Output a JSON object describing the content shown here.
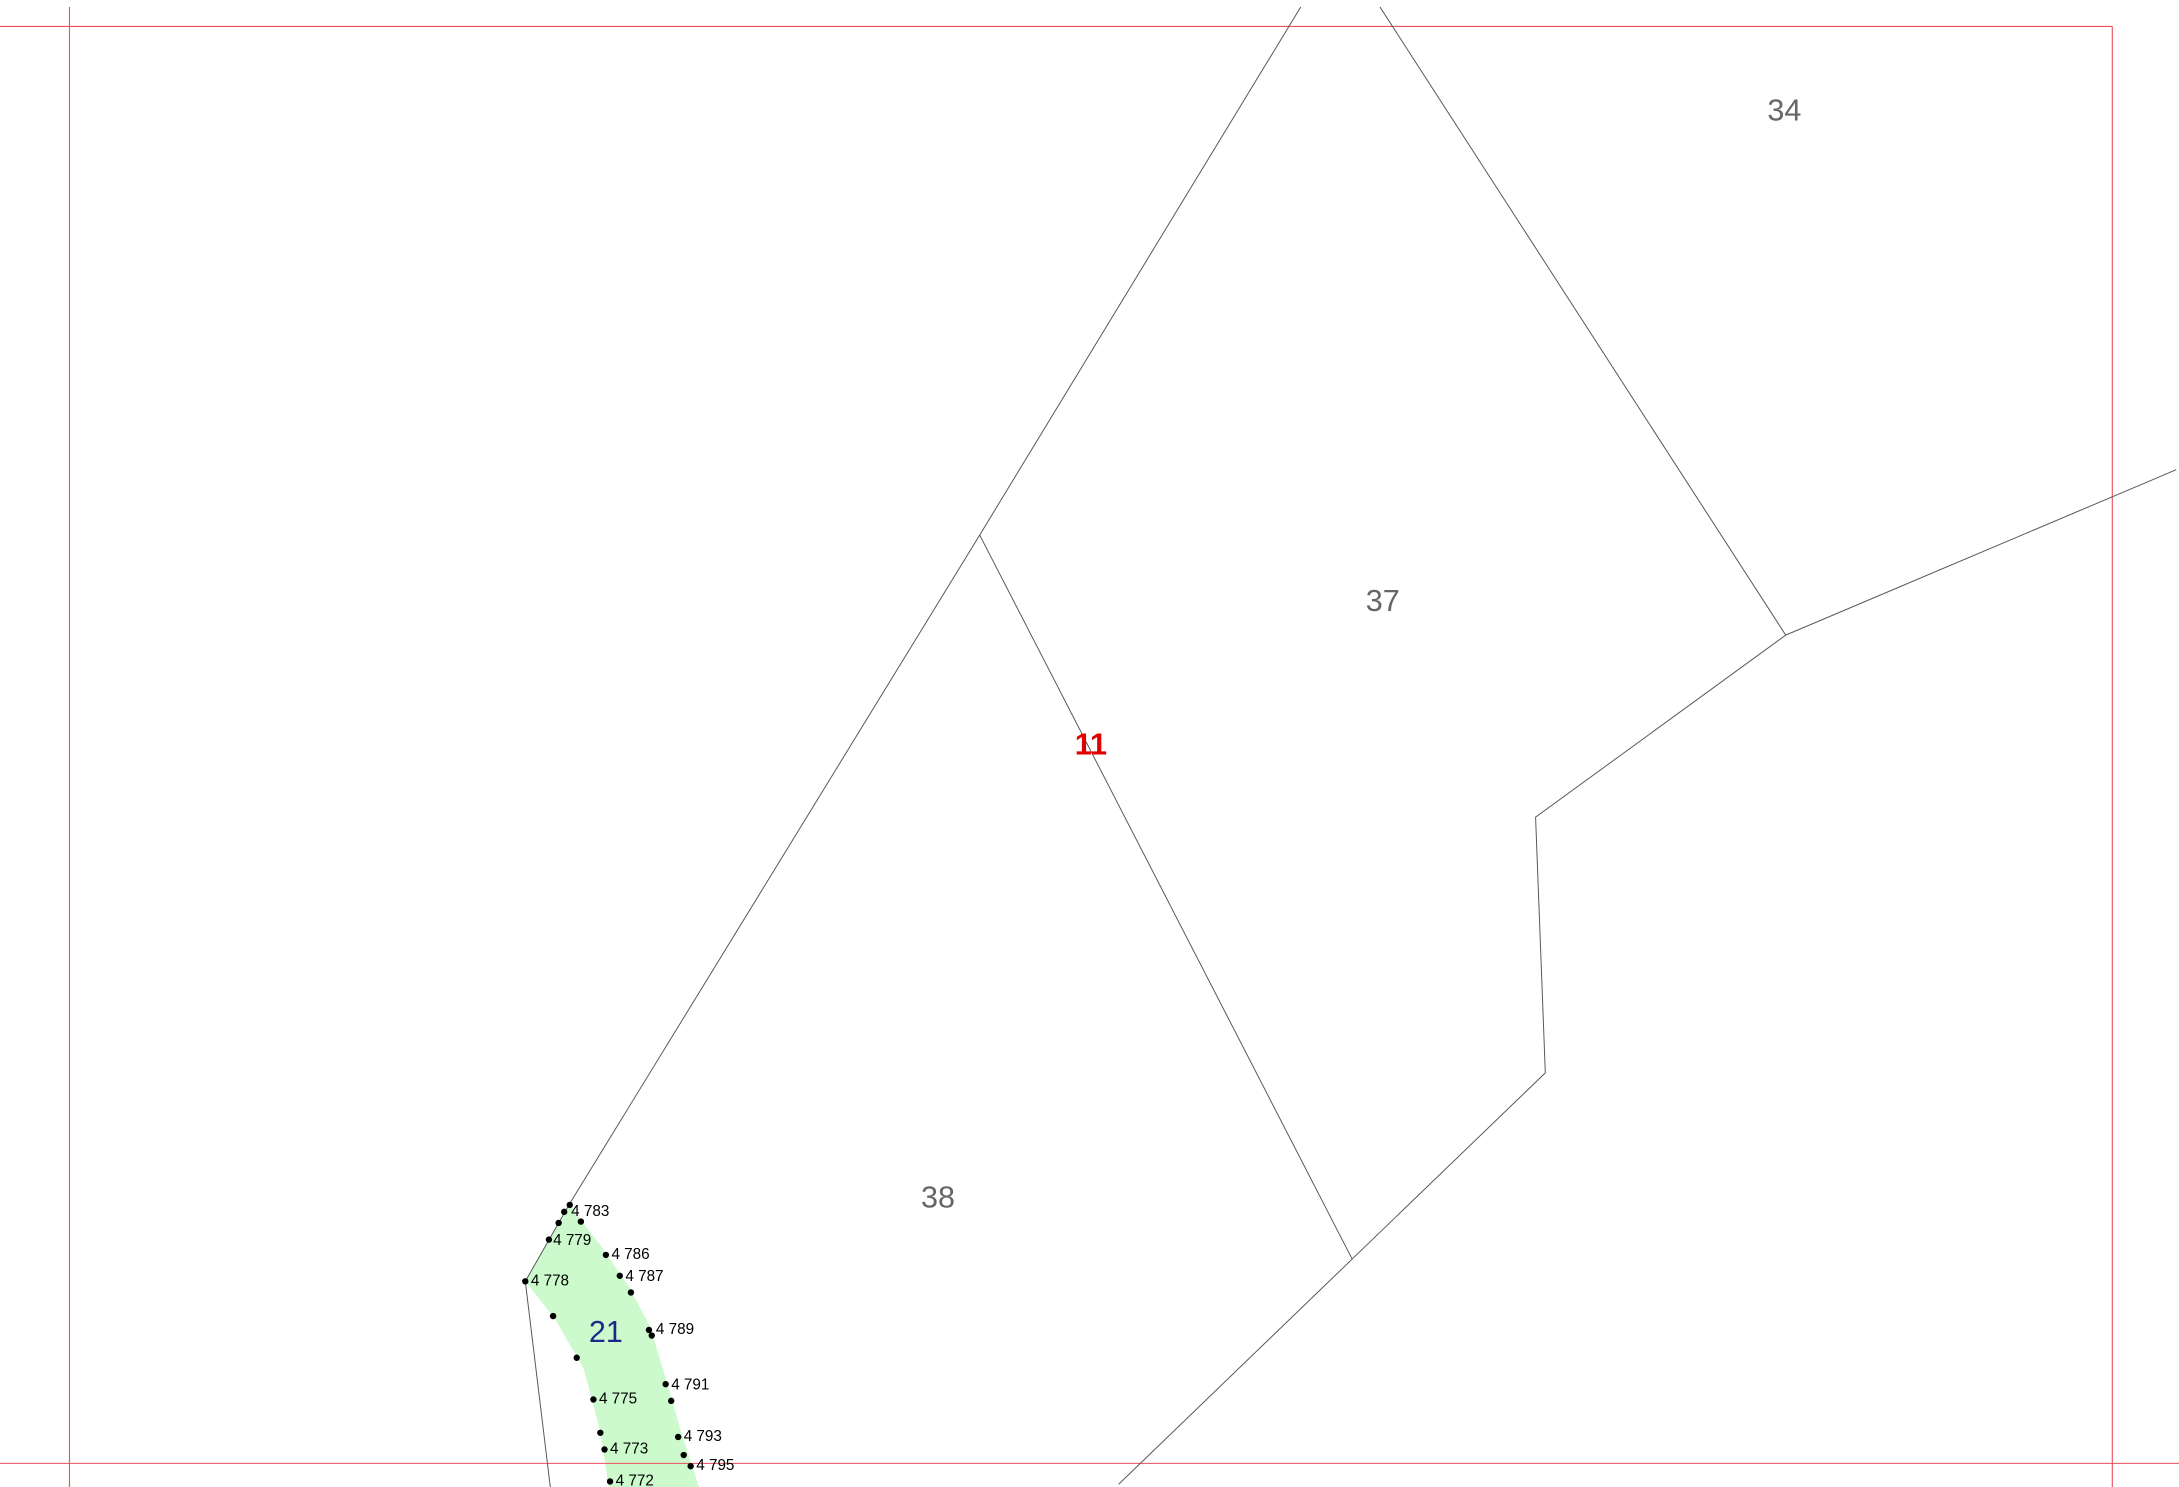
{
  "parcels": [
    "34",
    "37",
    "11",
    "38",
    "21"
  ],
  "points": [
    "4 783",
    "4 779",
    "4 786",
    "4 787",
    "4 778",
    "4 789",
    "4 791",
    "4 775",
    "4 793",
    "4 773",
    "4 795",
    "4 772"
  ]
}
